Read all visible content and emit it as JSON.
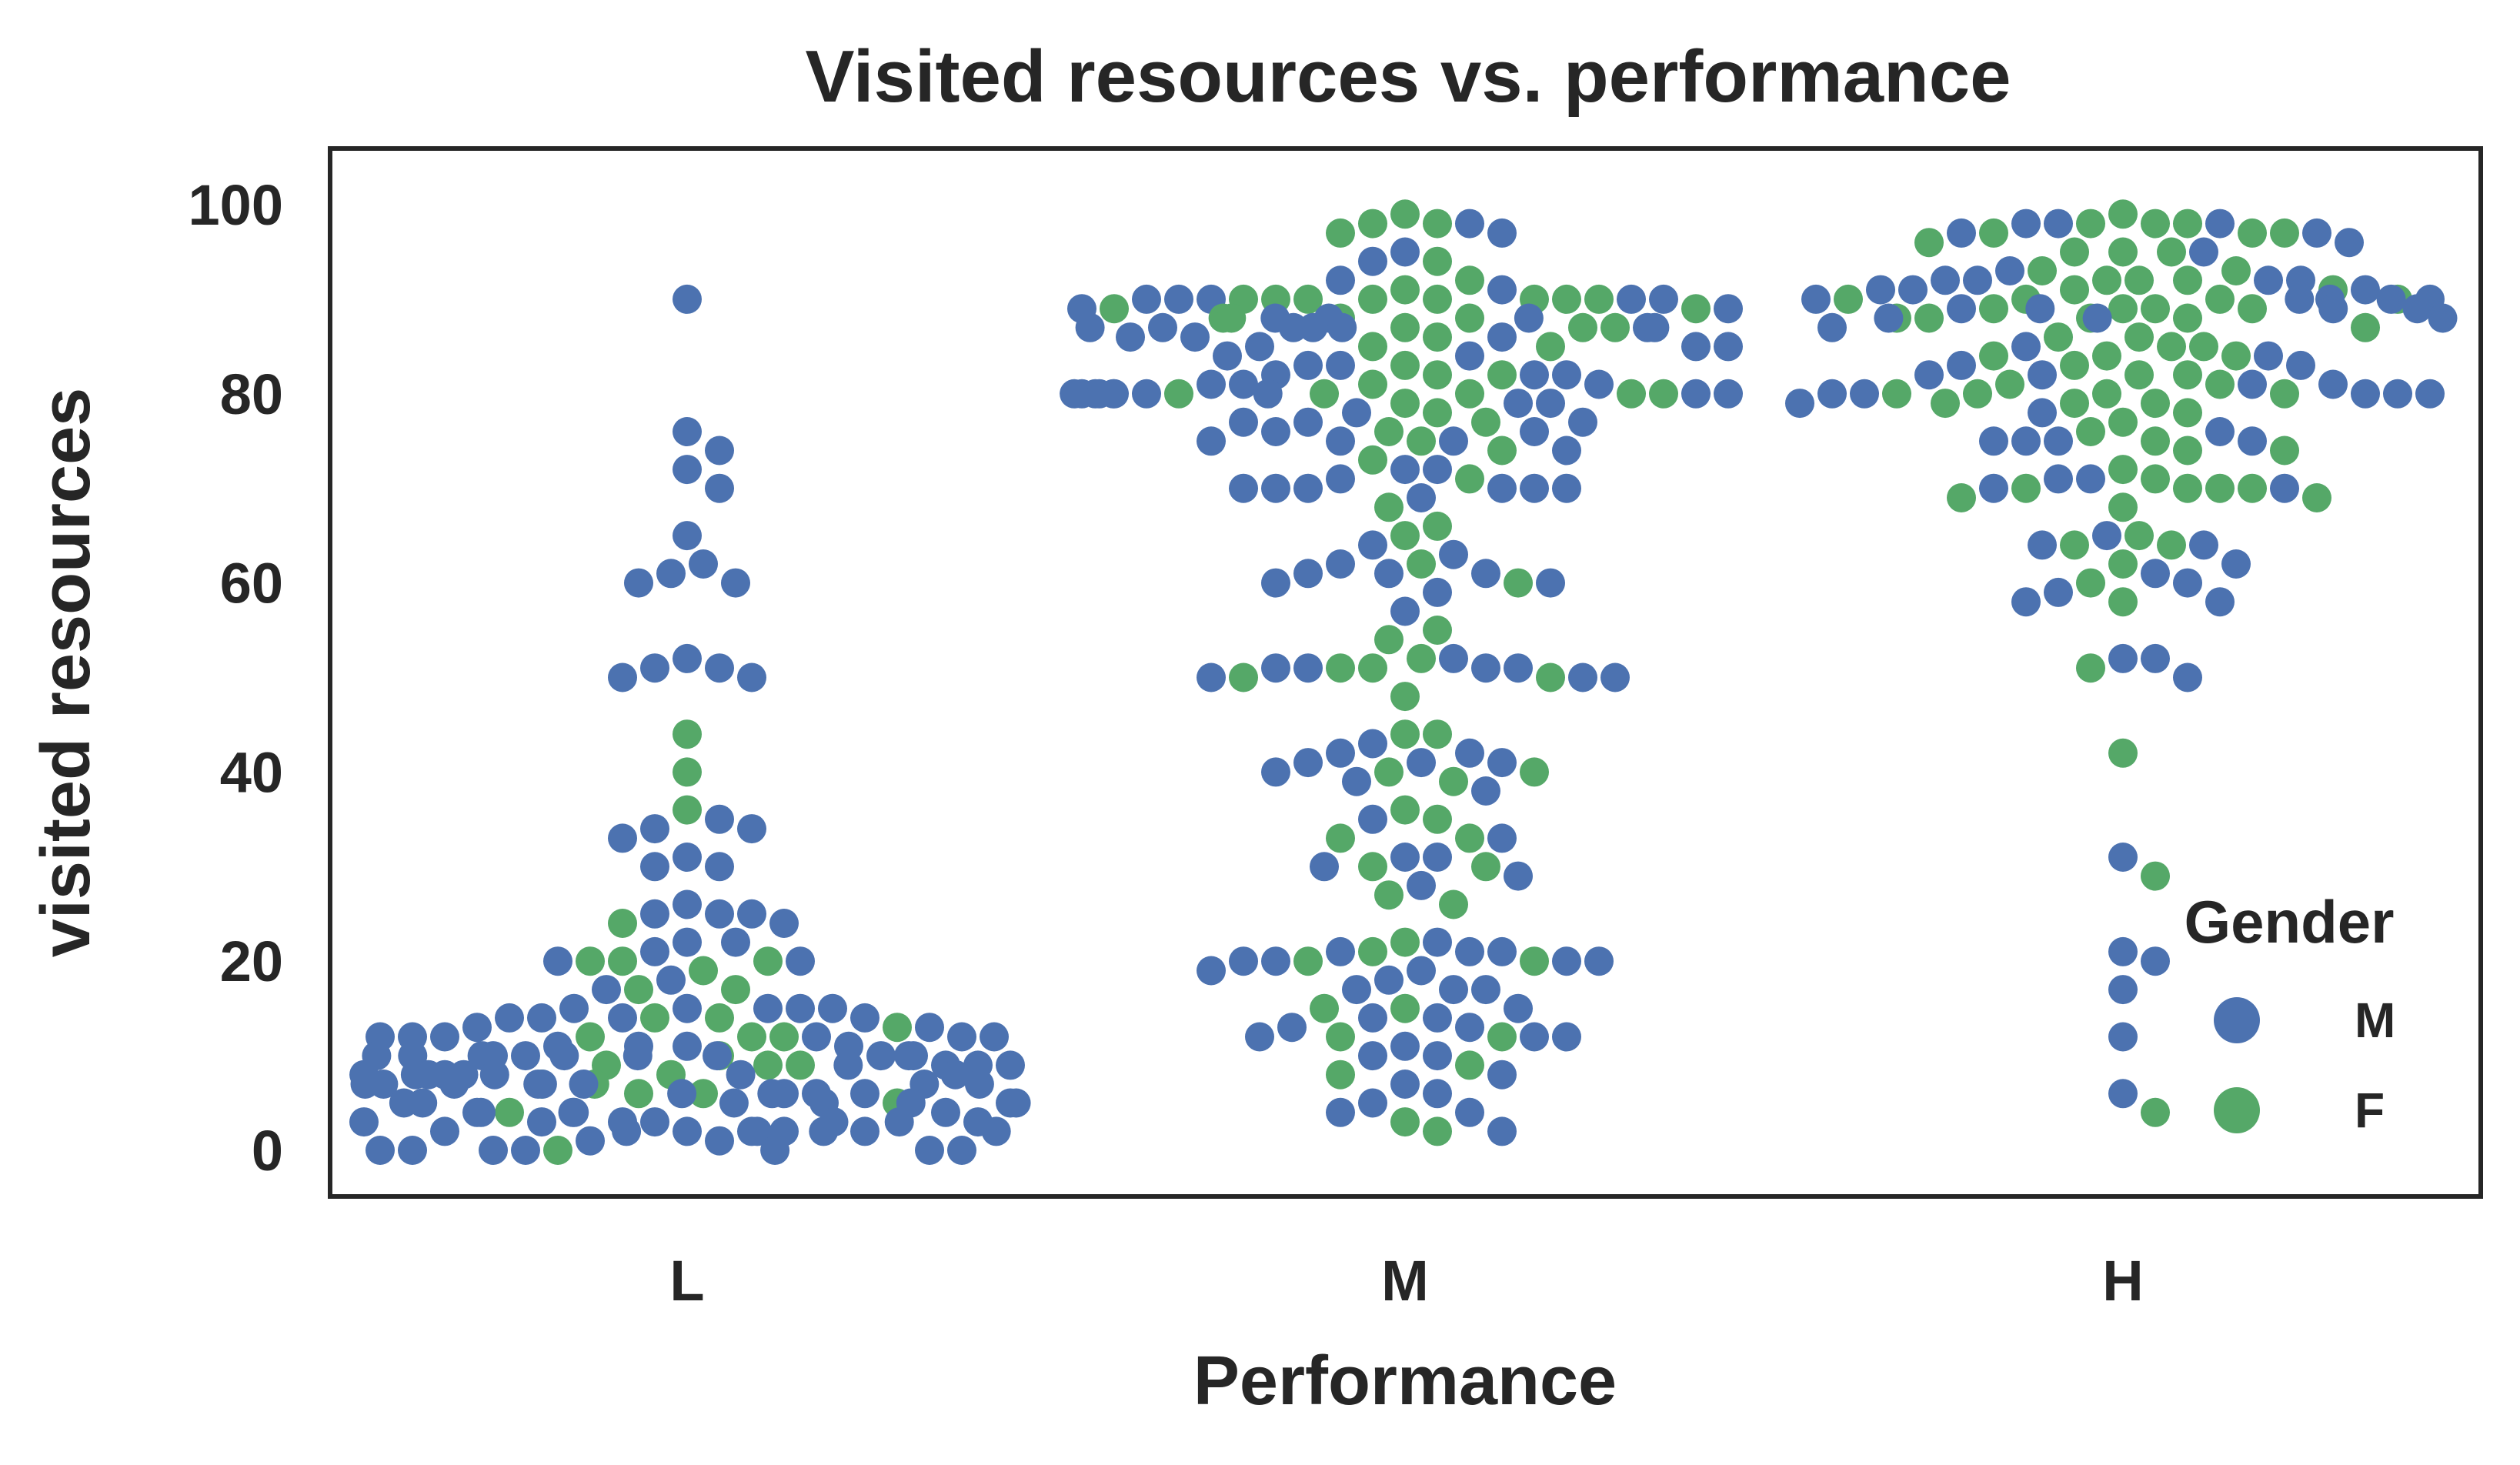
{
  "chart_data": {
    "type": "scatter",
    "subtype": "swarm",
    "title": "Visited resources vs. performance",
    "xlabel": "Performance",
    "ylabel": "visited resources",
    "categories": [
      "L",
      "M",
      "H"
    ],
    "ylim": [
      -5,
      105
    ],
    "yticks": [
      0,
      20,
      40,
      60,
      80,
      100
    ],
    "grid": false,
    "legend": {
      "title": "Gender",
      "placement": "lower-right",
      "entries": [
        {
          "label": "M",
          "color": "#4c72b0"
        },
        {
          "label": "F",
          "color": "#55a868"
        }
      ]
    },
    "series": [
      {
        "name": "M",
        "color": "#4c72b0",
        "points": {
          "L": [
            90,
            76,
            74,
            72,
            70,
            65,
            62,
            61,
            60,
            60,
            52,
            51,
            51,
            50,
            50,
            35,
            34,
            34,
            33,
            31,
            30,
            30,
            26,
            25,
            25,
            25,
            24,
            22,
            22,
            21,
            20,
            20,
            18,
            17,
            15,
            15,
            15,
            15,
            15,
            14,
            14,
            14,
            14,
            13,
            13,
            12,
            12,
            12,
            12,
            12,
            12,
            11,
            11,
            11,
            11,
            10,
            10,
            10,
            10,
            10,
            10,
            10,
            10,
            10,
            10,
            10,
            9,
            9,
            9,
            9,
            8,
            8,
            8,
            8,
            8,
            8,
            8,
            8,
            7,
            7,
            7,
            7,
            7,
            7,
            7,
            7,
            6,
            6,
            6,
            6,
            6,
            5,
            5,
            5,
            5,
            5,
            5,
            5,
            4,
            4,
            4,
            4,
            4,
            3,
            3,
            3,
            3,
            3,
            3,
            3,
            2,
            2,
            2,
            2,
            2,
            2,
            2,
            2,
            2,
            1,
            1,
            0,
            0,
            0,
            0,
            0,
            0,
            0
          ],
          "M": [
            98,
            97,
            95,
            94,
            92,
            91,
            90,
            90,
            90,
            90,
            90,
            89,
            89,
            88,
            88,
            88,
            87,
            87,
            87,
            87,
            87,
            87,
            87,
            86,
            86,
            86,
            85,
            85,
            85,
            84,
            84,
            83,
            83,
            82,
            82,
            82,
            81,
            81,
            81,
            80,
            80,
            80,
            80,
            80,
            80,
            80,
            80,
            80,
            80,
            79,
            79,
            78,
            77,
            77,
            77,
            76,
            76,
            75,
            75,
            75,
            74,
            72,
            72,
            71,
            70,
            70,
            70,
            70,
            70,
            70,
            69,
            64,
            63,
            62,
            61,
            61,
            61,
            60,
            60,
            59,
            57,
            52,
            51,
            51,
            51,
            51,
            50,
            50,
            50,
            43,
            42,
            42,
            41,
            41,
            41,
            40,
            39,
            38,
            35,
            33,
            31,
            31,
            30,
            29,
            28,
            22,
            21,
            21,
            21,
            20,
            20,
            20,
            20,
            19,
            19,
            18,
            17,
            17,
            17,
            15,
            14,
            14,
            13,
            13,
            12,
            12,
            12,
            11,
            10,
            10,
            8,
            7,
            6,
            5,
            4,
            4,
            2
          ],
          "H": [
            98,
            98,
            98,
            97,
            97,
            96,
            95,
            93,
            92,
            92,
            92,
            92,
            91,
            91,
            91,
            90,
            90,
            90,
            90,
            90,
            89,
            89,
            89,
            89,
            88,
            88,
            88,
            87,
            85,
            84,
            83,
            83,
            82,
            82,
            81,
            81,
            80,
            80,
            80,
            80,
            80,
            79,
            78,
            76,
            75,
            75,
            75,
            75,
            71,
            71,
            70,
            70,
            65,
            64,
            64,
            62,
            61,
            60,
            59,
            58,
            58,
            52,
            52,
            50,
            31,
            21,
            20,
            17,
            12,
            6
          ]
        }
      },
      {
        "name": "F",
        "color": "#55a868",
        "points": {
          "L": [
            44,
            40,
            36,
            24,
            20,
            20,
            20,
            19,
            17,
            17,
            14,
            14,
            13,
            12,
            12,
            12,
            10,
            9,
            9,
            9,
            8,
            7,
            7,
            6,
            6,
            5,
            4,
            0
          ],
          "M": [
            99,
            98,
            98,
            97,
            94,
            92,
            91,
            90,
            90,
            90,
            90,
            90,
            90,
            90,
            90,
            89,
            89,
            88,
            88,
            88,
            88,
            87,
            87,
            87,
            86,
            85,
            85,
            83,
            82,
            82,
            81,
            80,
            80,
            80,
            80,
            80,
            79,
            78,
            77,
            76,
            75,
            74,
            73,
            71,
            68,
            66,
            65,
            62,
            60,
            55,
            54,
            52,
            51,
            51,
            50,
            50,
            48,
            44,
            44,
            40,
            40,
            39,
            36,
            35,
            33,
            33,
            30,
            30,
            27,
            26,
            22,
            21,
            20,
            20,
            15,
            15,
            12,
            12,
            9,
            8,
            3,
            2
          ],
          "H": [
            99,
            98,
            98,
            98,
            97,
            97,
            97,
            96,
            95,
            95,
            95,
            93,
            93,
            92,
            92,
            92,
            91,
            91,
            90,
            90,
            90,
            90,
            89,
            89,
            89,
            89,
            88,
            88,
            88,
            88,
            87,
            86,
            86,
            85,
            85,
            84,
            84,
            84,
            83,
            82,
            82,
            81,
            81,
            80,
            80,
            80,
            80,
            79,
            79,
            79,
            78,
            77,
            76,
            75,
            74,
            74,
            72,
            71,
            70,
            70,
            70,
            70,
            69,
            69,
            68,
            65,
            64,
            64,
            62,
            60,
            58,
            51,
            42,
            29,
            4
          ]
        }
      }
    ]
  }
}
